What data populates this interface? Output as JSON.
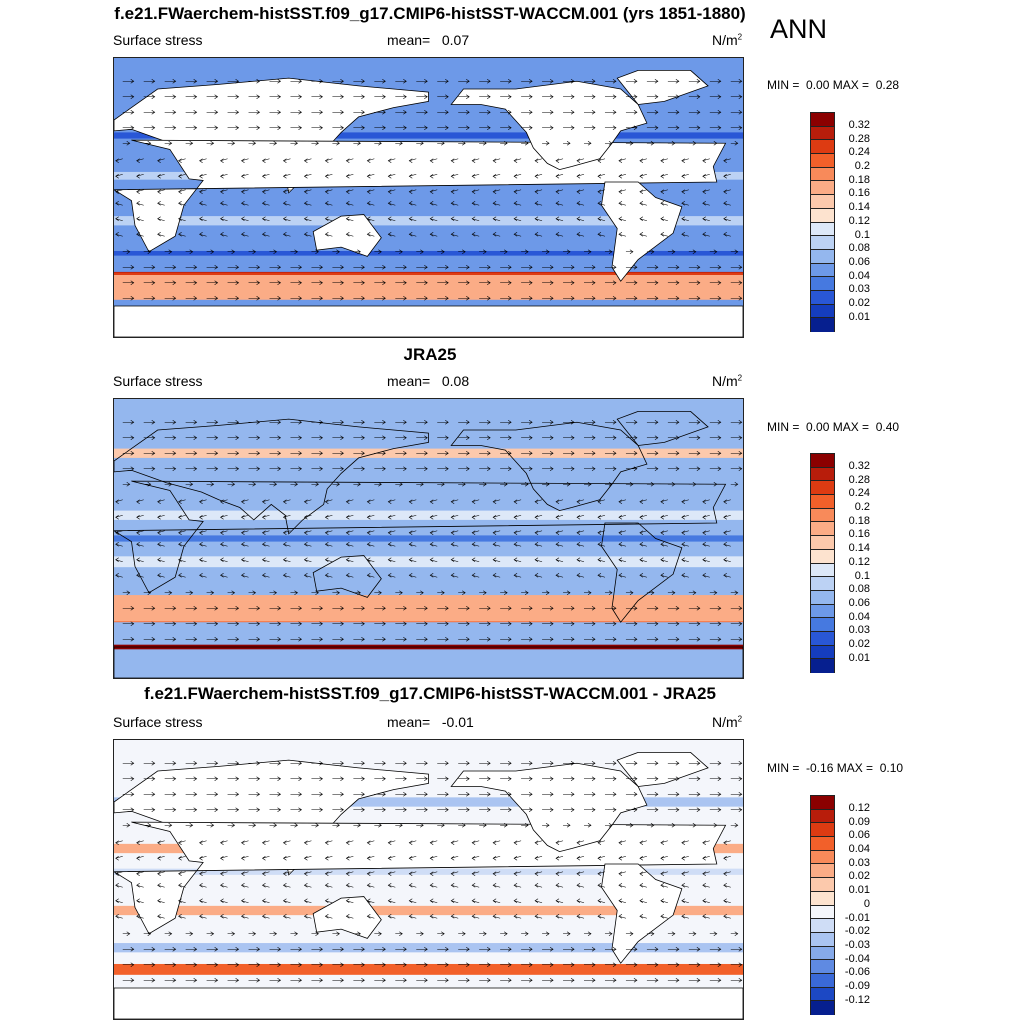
{
  "season": "ANN",
  "panels": [
    {
      "title": "f.e21.FWaerchem-histSST.f09_g17.CMIP6-histSST-WACCM.001 (yrs 1851-1880)",
      "var_label": "Surface stress",
      "mean_label": "mean=",
      "mean_value": "0.07",
      "units": "N/m",
      "units_sup": "2",
      "min_label": "MIN =",
      "min_value": "0.00",
      "max_label": "MAX =",
      "max_value": "0.28",
      "levels": [
        "0.32",
        "0.28",
        "0.24",
        "0.2",
        "0.18",
        "0.16",
        "0.14",
        "0.12",
        "0.1",
        "0.08",
        "0.06",
        "0.04",
        "0.03",
        "0.02",
        "0.01"
      ],
      "colors": [
        "#8b0000",
        "#b81d0b",
        "#dd3b12",
        "#f2602a",
        "#f88a5a",
        "#fbac86",
        "#fcc9ac",
        "#fde3cf",
        "#dde8f8",
        "#bcd2f4",
        "#94b7ee",
        "#6d99e8",
        "#4679e0",
        "#2957d6",
        "#153dbe",
        "#061f8f"
      ]
    },
    {
      "title": "JRA25",
      "var_label": "Surface stress",
      "mean_label": "mean=",
      "mean_value": "0.08",
      "units": "N/m",
      "units_sup": "2",
      "min_label": "MIN =",
      "min_value": "0.00",
      "max_label": "MAX =",
      "max_value": "0.40",
      "levels": [
        "0.32",
        "0.28",
        "0.24",
        "0.2",
        "0.18",
        "0.16",
        "0.14",
        "0.12",
        "0.1",
        "0.08",
        "0.06",
        "0.04",
        "0.03",
        "0.02",
        "0.01"
      ],
      "colors": [
        "#8b0000",
        "#b81d0b",
        "#dd3b12",
        "#f2602a",
        "#f88a5a",
        "#fbac86",
        "#fcc9ac",
        "#fde3cf",
        "#dde8f8",
        "#bcd2f4",
        "#94b7ee",
        "#6d99e8",
        "#4679e0",
        "#2957d6",
        "#153dbe",
        "#061f8f"
      ]
    },
    {
      "title": "f.e21.FWaerchem-histSST.f09_g17.CMIP6-histSST-WACCM.001 - JRA25",
      "var_label": "Surface stress",
      "mean_label": "mean=",
      "mean_value": "-0.01",
      "units": "N/m",
      "units_sup": "2",
      "min_label": "MIN =",
      "min_value": "-0.16",
      "max_label": "MAX =",
      "max_value": "0.10",
      "levels": [
        "0.12",
        "0.09",
        "0.06",
        "0.04",
        "0.03",
        "0.02",
        "0.01",
        "0",
        "-0.01",
        "-0.02",
        "-0.03",
        "-0.04",
        "-0.06",
        "-0.09",
        "-0.12"
      ],
      "colors": [
        "#8b0000",
        "#b81d0b",
        "#dd3b12",
        "#f2602a",
        "#f88a5a",
        "#fbac86",
        "#fcc9ac",
        "#fde3cf",
        "#f4f6fb",
        "#cfddf6",
        "#aac4f1",
        "#86aaea",
        "#5f8ae2",
        "#3a69d8",
        "#1c48c4",
        "#061f8f"
      ]
    }
  ],
  "chart_data": [
    {
      "type": "heatmap",
      "title": "f.e21.FWaerchem-histSST.f09_g17.CMIP6-histSST-WACCM.001 (yrs 1851-1880)",
      "subtitle": "Surface stress",
      "units": "N/m2",
      "mean": 0.07,
      "min": 0.0,
      "max": 0.28,
      "colorbar_levels": [
        0.01,
        0.02,
        0.03,
        0.04,
        0.06,
        0.08,
        0.1,
        0.12,
        0.14,
        0.16,
        0.18,
        0.2,
        0.24,
        0.28,
        0.32
      ],
      "background_level": 0.04,
      "features": [
        {
          "lat": -52,
          "level": 0.28,
          "width": 8
        },
        {
          "lat": -54,
          "level": 0.24,
          "width": 11
        },
        {
          "lat": -58,
          "level": 0.16,
          "width": 16
        },
        {
          "lat": -36,
          "level": 0.02,
          "width": 3
        },
        {
          "lat": 40,
          "level": 0.02,
          "width": 4
        },
        {
          "lat": 14,
          "level": 0.08,
          "width": 5
        },
        {
          "lat": -15,
          "level": 0.08,
          "width": 6
        }
      ]
    },
    {
      "type": "heatmap",
      "title": "JRA25",
      "subtitle": "Surface stress",
      "units": "N/m2",
      "mean": 0.08,
      "min": 0.0,
      "max": 0.4,
      "colorbar_levels": [
        0.01,
        0.02,
        0.03,
        0.04,
        0.06,
        0.08,
        0.1,
        0.12,
        0.14,
        0.16,
        0.18,
        0.2,
        0.24,
        0.28,
        0.32
      ],
      "background_level": 0.06,
      "features": [
        {
          "lat": -50,
          "level": 0.28,
          "width": 7
        },
        {
          "lat": -48,
          "level": 0.2,
          "width": 12
        },
        {
          "lat": -45,
          "level": 0.16,
          "width": 17
        },
        {
          "lat": 55,
          "level": 0.14,
          "width": 6
        },
        {
          "lat": 15,
          "level": 0.1,
          "width": 6
        },
        {
          "lat": -15,
          "level": 0.1,
          "width": 7
        },
        {
          "lat": 0,
          "level": 0.03,
          "width": 4
        },
        {
          "lat": -70,
          "level": 0.32,
          "width": 3
        }
      ]
    },
    {
      "type": "heatmap",
      "title": "f.e21.FWaerchem-histSST.f09_g17.CMIP6-histSST-WACCM.001 - JRA25",
      "subtitle": "Surface stress",
      "units": "N/m2",
      "mean": -0.01,
      "min": -0.16,
      "max": 0.1,
      "colorbar_levels": [
        -0.12,
        -0.09,
        -0.06,
        -0.04,
        -0.03,
        -0.02,
        -0.01,
        0,
        0.01,
        0.02,
        0.03,
        0.04,
        0.06,
        0.09,
        0.12
      ],
      "background_level": -0.01,
      "features": [
        {
          "lat": -58,
          "level": 0.04,
          "width": 7
        },
        {
          "lat": -44,
          "level": -0.03,
          "width": 6
        },
        {
          "lat": -20,
          "level": 0.02,
          "width": 6
        },
        {
          "lat": 20,
          "level": 0.02,
          "width": 6
        },
        {
          "lat": 50,
          "level": -0.03,
          "width": 6
        },
        {
          "lat": 5,
          "level": -0.02,
          "width": 4
        }
      ]
    }
  ]
}
